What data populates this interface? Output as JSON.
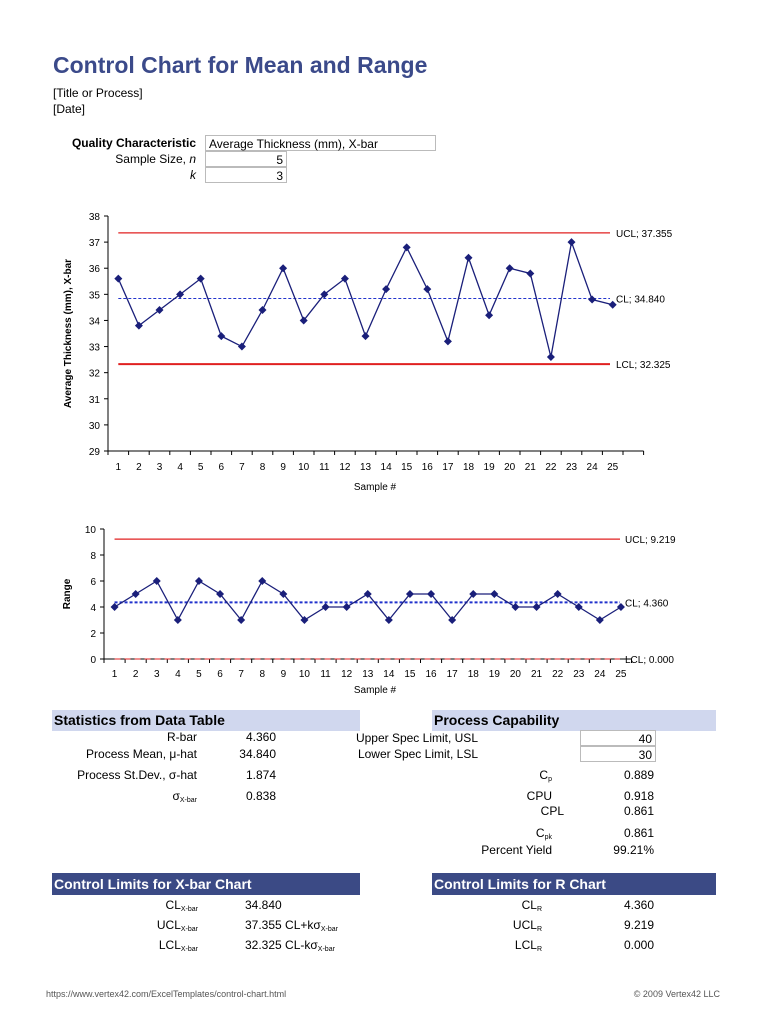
{
  "header": {
    "title": "Control Chart for Mean and Range",
    "subtitle": "[Title or Process]",
    "date": "[Date]"
  },
  "inputs": {
    "quality_label": "Quality Characteristic",
    "quality_value": "Average Thickness (mm), X-bar",
    "sample_size_label": "Sample Size, ",
    "sample_size_var": "n",
    "sample_size_value": "5",
    "k_label": "k",
    "k_value": "3"
  },
  "chart_data": [
    {
      "type": "line",
      "title": "",
      "xlabel": "Sample #",
      "ylabel": "Average Thickness (mm), X-bar",
      "categories": [
        "1",
        "2",
        "3",
        "4",
        "5",
        "6",
        "7",
        "8",
        "9",
        "10",
        "11",
        "12",
        "13",
        "14",
        "15",
        "16",
        "17",
        "18",
        "19",
        "20",
        "21",
        "22",
        "23",
        "24",
        "25"
      ],
      "values": [
        35.6,
        33.8,
        34.4,
        35.0,
        35.6,
        33.4,
        33.0,
        34.4,
        36.0,
        34.0,
        35.0,
        35.6,
        33.4,
        35.2,
        36.8,
        35.2,
        33.2,
        36.4,
        34.2,
        36.0,
        35.8,
        32.6,
        37.0,
        34.8,
        34.6
      ],
      "ylim": [
        29,
        38
      ],
      "yticks": [
        "29",
        "30",
        "31",
        "32",
        "33",
        "34",
        "35",
        "36",
        "37",
        "38"
      ],
      "lines": {
        "ucl": 37.355,
        "cl": 34.84,
        "lcl": 32.325
      },
      "line_labels": {
        "ucl": "UCL; 37.355",
        "cl": "CL; 34.840",
        "lcl": "LCL; 32.325"
      },
      "colors": {
        "series": "#1a1f7a",
        "limits": "#e02020",
        "center": "#2233cc"
      },
      "grid": false
    },
    {
      "type": "line",
      "title": "",
      "xlabel": "Sample #",
      "ylabel": "Range",
      "categories": [
        "1",
        "2",
        "3",
        "4",
        "5",
        "6",
        "7",
        "8",
        "9",
        "10",
        "11",
        "12",
        "13",
        "14",
        "15",
        "16",
        "17",
        "18",
        "19",
        "20",
        "21",
        "22",
        "23",
        "24",
        "25"
      ],
      "values": [
        4,
        5,
        6,
        3,
        6,
        5,
        3,
        6,
        5,
        3,
        4,
        4,
        5,
        3,
        5,
        5,
        3,
        5,
        5,
        4,
        4,
        5,
        4,
        3,
        4
      ],
      "ylim": [
        0,
        10
      ],
      "yticks": [
        "0",
        "2",
        "4",
        "6",
        "8",
        "10"
      ],
      "lines": {
        "ucl": 9.219,
        "cl": 4.36,
        "lcl": 0
      },
      "line_labels": {
        "ucl": "UCL; 9.219",
        "cl": "CL; 4.360",
        "lcl": "LCL; 0.000"
      },
      "colors": {
        "series": "#1a1f7a",
        "limits": "#e02020",
        "center": "#2233cc"
      },
      "grid": false
    }
  ],
  "stats": {
    "title": "Statistics from Data Table",
    "rows": [
      {
        "label": "R-bar",
        "value": "4.360"
      },
      {
        "label": "Process Mean, μ-hat",
        "value": "34.840"
      },
      {
        "label": "Process St.Dev., σ-hat",
        "value": "1.874"
      },
      {
        "label": "σ",
        "sub": "X-bar",
        "value": "0.838"
      }
    ]
  },
  "capability": {
    "title": "Process Capability",
    "usl_label": "Upper Spec Limit, USL",
    "usl_value": "40",
    "lsl_label": "Lower Spec Limit, LSL",
    "lsl_value": "30",
    "rows": [
      {
        "label": "C",
        "sub": "p",
        "value": "0.889"
      },
      {
        "label": "CPU",
        "value": "0.918"
      },
      {
        "label": "CPL",
        "value": "0.861"
      },
      {
        "label": "C",
        "sub": "pk",
        "value": "0.861"
      },
      {
        "label": "Percent Yield",
        "value": "99.21%"
      }
    ]
  },
  "xbar_limits": {
    "title": "Control Limits for X-bar Chart",
    "rows": [
      {
        "label": "CL",
        "sub": "X-bar",
        "value": "34.840",
        "note": "",
        "note_sub": ""
      },
      {
        "label": "UCL",
        "sub": "X-bar",
        "value": "37.355",
        "note": "CL+kσ",
        "note_sub": "X-bar"
      },
      {
        "label": "LCL",
        "sub": "X-bar",
        "value": "32.325",
        "note": "CL-kσ",
        "note_sub": "X-bar"
      }
    ]
  },
  "r_limits": {
    "title": "Control Limits for R Chart",
    "rows": [
      {
        "label": "CL",
        "sub": "R",
        "value": "4.360"
      },
      {
        "label": "UCL",
        "sub": "R",
        "value": "9.219"
      },
      {
        "label": "LCL",
        "sub": "R",
        "value": "0.000"
      }
    ]
  },
  "footer": {
    "url": "https://www.vertex42.com/ExcelTemplates/control-chart.html",
    "copyright": "© 2009 Vertex42 LLC"
  }
}
